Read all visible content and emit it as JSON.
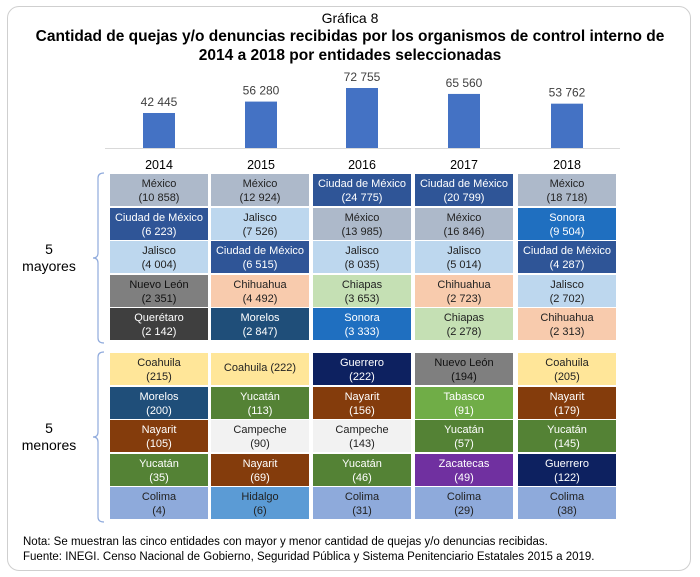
{
  "title_small": "Gráfica 8",
  "title_main_line1": "Cantidad de quejas y/o denuncias recibidas por los organismos de control interno de",
  "title_main_line2": "2014 a 2018 por entidades seleccionadas",
  "chart_data": {
    "type": "bar",
    "title": "Cantidad de quejas y/o denuncias recibidas por los organismos de control interno de 2014 a 2018 por entidades seleccionadas",
    "categories": [
      "2014",
      "2015",
      "2016",
      "2017",
      "2018"
    ],
    "values": [
      42445,
      56280,
      72755,
      65560,
      53762
    ],
    "value_labels": [
      "42 445",
      "56 280",
      "72 755",
      "65 560",
      "53 762"
    ],
    "bar_color": "#4472c4",
    "ylim": [
      0,
      80000
    ],
    "grid": false
  },
  "groups": [
    {
      "label_num": "5",
      "label_text": "mayores",
      "rows": [
        [
          {
            "name": "México",
            "value": "(10 858)",
            "bg": "#adb9ca",
            "fg": "#222222"
          },
          {
            "name": "México",
            "value": "(12 924)",
            "bg": "#adb9ca",
            "fg": "#222222"
          },
          {
            "name": "Ciudad de México",
            "value": "(24 775)",
            "bg": "#2f5597",
            "fg": "#ffffff"
          },
          {
            "name": "Ciudad de México",
            "value": "(20 799)",
            "bg": "#2f5597",
            "fg": "#ffffff"
          },
          {
            "name": "México",
            "value": "(18 718)",
            "bg": "#adb9ca",
            "fg": "#222222"
          }
        ],
        [
          {
            "name": "Ciudad de México",
            "value": "(6 223)",
            "bg": "#2f5597",
            "fg": "#ffffff"
          },
          {
            "name": "Jalisco",
            "value": "(7 526)",
            "bg": "#bdd7ee",
            "fg": "#222222"
          },
          {
            "name": "México",
            "value": "(13 985)",
            "bg": "#adb9ca",
            "fg": "#222222"
          },
          {
            "name": "México",
            "value": "(16 846)",
            "bg": "#adb9ca",
            "fg": "#222222"
          },
          {
            "name": "Sonora",
            "value": "(9 504)",
            "bg": "#1f6fc0",
            "fg": "#ffffff"
          }
        ],
        [
          {
            "name": "Jalisco",
            "value": "(4 004)",
            "bg": "#bdd7ee",
            "fg": "#222222"
          },
          {
            "name": "Ciudad de México",
            "value": "(6 515)",
            "bg": "#2f5597",
            "fg": "#ffffff"
          },
          {
            "name": "Jalisco",
            "value": "(8 035)",
            "bg": "#bdd7ee",
            "fg": "#222222"
          },
          {
            "name": "Jalisco",
            "value": "(5 014)",
            "bg": "#bdd7ee",
            "fg": "#222222"
          },
          {
            "name": "Ciudad de México",
            "value": "(4 287)",
            "bg": "#2f5597",
            "fg": "#ffffff"
          }
        ],
        [
          {
            "name": "Nuevo León",
            "value": "(2 351)",
            "bg": "#7f7f7f",
            "fg": "#111111"
          },
          {
            "name": "Chihuahua",
            "value": "(4 492)",
            "bg": "#f8cbad",
            "fg": "#222222"
          },
          {
            "name": "Chiapas",
            "value": "(3 653)",
            "bg": "#c5e0b4",
            "fg": "#222222"
          },
          {
            "name": "Chihuahua",
            "value": "(2 723)",
            "bg": "#f8cbad",
            "fg": "#222222"
          },
          {
            "name": "Jalisco",
            "value": "(2 702)",
            "bg": "#bdd7ee",
            "fg": "#222222"
          }
        ],
        [
          {
            "name": "Querétaro",
            "value": "(2 142)",
            "bg": "#3f3f3f",
            "fg": "#ffffff"
          },
          {
            "name": "Morelos",
            "value": "(2 847)",
            "bg": "#1f4e79",
            "fg": "#ffffff"
          },
          {
            "name": "Sonora",
            "value": "(3 333)",
            "bg": "#1f6fc0",
            "fg": "#ffffff"
          },
          {
            "name": "Chiapas",
            "value": "(2 278)",
            "bg": "#c5e0b4",
            "fg": "#222222"
          },
          {
            "name": "Chihuahua",
            "value": "(2 313)",
            "bg": "#f8cbad",
            "fg": "#222222"
          }
        ]
      ]
    },
    {
      "label_num": "5",
      "label_text": "menores",
      "rows": [
        [
          {
            "name": "Coahuila",
            "value": "(215)",
            "bg": "#ffe699",
            "fg": "#222222"
          },
          {
            "name": "Coahuila (222)",
            "value": "",
            "bg": "#ffe699",
            "fg": "#222222"
          },
          {
            "name": "Guerrero",
            "value": "(222)",
            "bg": "#0d2160",
            "fg": "#ffffff"
          },
          {
            "name": "Nuevo León",
            "value": "(194)",
            "bg": "#7f7f7f",
            "fg": "#111111"
          },
          {
            "name": "Coahuila",
            "value": "(205)",
            "bg": "#ffe699",
            "fg": "#222222"
          }
        ],
        [
          {
            "name": "Morelos",
            "value": "(200)",
            "bg": "#1f4e79",
            "fg": "#ffffff"
          },
          {
            "name": "Yucatán",
            "value": "(113)",
            "bg": "#548235",
            "fg": "#ffffff"
          },
          {
            "name": "Nayarit",
            "value": "(156)",
            "bg": "#843c0c",
            "fg": "#ffffff"
          },
          {
            "name": "Tabasco",
            "value": "(91)",
            "bg": "#70ad47",
            "fg": "#ffffff"
          },
          {
            "name": "Nayarit",
            "value": "(179)",
            "bg": "#843c0c",
            "fg": "#ffffff"
          }
        ],
        [
          {
            "name": "Nayarit",
            "value": "(105)",
            "bg": "#843c0c",
            "fg": "#ffffff"
          },
          {
            "name": "Campeche",
            "value": "(90)",
            "bg": "#f2f2f2",
            "fg": "#222222"
          },
          {
            "name": "Campeche",
            "value": "(143)",
            "bg": "#f2f2f2",
            "fg": "#222222"
          },
          {
            "name": "Yucatán",
            "value": "(57)",
            "bg": "#548235",
            "fg": "#ffffff"
          },
          {
            "name": "Yucatán",
            "value": "(145)",
            "bg": "#548235",
            "fg": "#ffffff"
          }
        ],
        [
          {
            "name": "Yucatán",
            "value": "(35)",
            "bg": "#548235",
            "fg": "#ffffff"
          },
          {
            "name": "Nayarit",
            "value": "(69)",
            "bg": "#843c0c",
            "fg": "#ffffff"
          },
          {
            "name": "Yucatán",
            "value": "(46)",
            "bg": "#548235",
            "fg": "#ffffff"
          },
          {
            "name": "Zacatecas",
            "value": "(49)",
            "bg": "#7030a0",
            "fg": "#ffffff"
          },
          {
            "name": "Guerrero",
            "value": "(122)",
            "bg": "#0d2160",
            "fg": "#ffffff"
          }
        ],
        [
          {
            "name": "Colima",
            "value": "(4)",
            "bg": "#8eaadb",
            "fg": "#222222"
          },
          {
            "name": "Hidalgo",
            "value": "(6)",
            "bg": "#5b9bd5",
            "fg": "#222222"
          },
          {
            "name": "Colima",
            "value": "(31)",
            "bg": "#8eaadb",
            "fg": "#222222"
          },
          {
            "name": "Colima",
            "value": "(29)",
            "bg": "#8eaadb",
            "fg": "#222222"
          },
          {
            "name": "Colima",
            "value": "(38)",
            "bg": "#8eaadb",
            "fg": "#222222"
          }
        ]
      ]
    }
  ],
  "note": "Nota: Se muestran las cinco entidades con mayor y menor cantidad de quejas y/o denuncias recibidas.",
  "source": "Fuente: INEGI. Censo Nacional de Gobierno, Seguridad Pública y Sistema Penitenciario Estatales 2015 a 2019."
}
